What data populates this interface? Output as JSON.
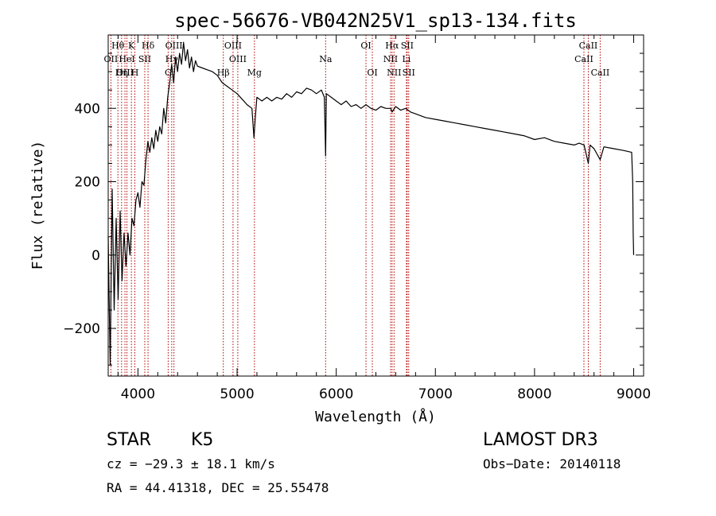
{
  "chart_data": {
    "type": "line",
    "title": "spec-56676-VB042N25V1_sp13-134.fits",
    "xlabel": "Wavelength (Å)",
    "ylabel": "Flux (relative)",
    "xlim": [
      3700,
      9100
    ],
    "ylim": [
      -330,
      600
    ],
    "x_ticks": [
      4000,
      5000,
      6000,
      7000,
      8000,
      9000
    ],
    "y_ticks": [
      -200,
      0,
      200,
      400
    ],
    "x_tick_labels": [
      "4000",
      "5000",
      "6000",
      "7000",
      "8000",
      "9000"
    ],
    "y_tick_labels": [
      "−200",
      "0",
      "200",
      "400"
    ],
    "grid": false,
    "series": [
      {
        "x": [
          3700,
          3720,
          3740,
          3760,
          3780,
          3800,
          3820,
          3840,
          3860,
          3880,
          3900,
          3920,
          3940,
          3960,
          3980,
          4000,
          4020,
          4040,
          4060,
          4080,
          4100,
          4120,
          4140,
          4160,
          4180,
          4200,
          4220,
          4240,
          4260,
          4280,
          4300,
          4320,
          4340,
          4360,
          4380,
          4400,
          4420,
          4440,
          4460,
          4480,
          4500,
          4520,
          4540,
          4560,
          4580,
          4600,
          4650,
          4700,
          4750,
          4800,
          4850,
          4900,
          4950,
          5000,
          5050,
          5100,
          5150,
          5170,
          5185,
          5200,
          5250,
          5300,
          5350,
          5400,
          5450,
          5500,
          5550,
          5600,
          5650,
          5700,
          5750,
          5800,
          5850,
          5880,
          5893,
          5900,
          5950,
          6000,
          6050,
          6100,
          6150,
          6200,
          6250,
          6300,
          6350,
          6400,
          6450,
          6500,
          6550,
          6563,
          6600,
          6650,
          6700,
          6750,
          6800,
          6900,
          7000,
          7100,
          7200,
          7300,
          7400,
          7500,
          7600,
          7700,
          7800,
          7900,
          8000,
          8100,
          8200,
          8300,
          8400,
          8450,
          8500,
          8542,
          8560,
          8600,
          8662,
          8700,
          8800,
          8900,
          8980,
          8990,
          8995,
          9000
        ],
        "y": [
          50,
          -300,
          180,
          -150,
          100,
          -120,
          120,
          -70,
          60,
          -30,
          60,
          0,
          100,
          80,
          150,
          170,
          130,
          200,
          190,
          260,
          310,
          280,
          320,
          290,
          340,
          310,
          350,
          330,
          400,
          360,
          430,
          470,
          520,
          470,
          540,
          500,
          550,
          520,
          580,
          530,
          560,
          510,
          540,
          500,
          530,
          515,
          510,
          505,
          500,
          490,
          470,
          460,
          450,
          440,
          425,
          410,
          400,
          320,
          380,
          430,
          420,
          430,
          420,
          430,
          425,
          440,
          430,
          445,
          440,
          455,
          450,
          440,
          450,
          430,
          270,
          440,
          430,
          420,
          410,
          420,
          405,
          410,
          400,
          410,
          400,
          395,
          405,
          400,
          400,
          390,
          405,
          395,
          400,
          390,
          385,
          375,
          370,
          365,
          360,
          355,
          350,
          345,
          340,
          335,
          330,
          325,
          315,
          320,
          310,
          305,
          300,
          305,
          300,
          250,
          300,
          290,
          260,
          295,
          290,
          285,
          280,
          200,
          60,
          0
        ]
      }
    ],
    "lines": [
      {
        "label": "Hθ",
        "x": 3798,
        "row": 0
      },
      {
        "label": "OII",
        "x": 3727,
        "row": 1
      },
      {
        "label": "OIII",
        "x": 3869,
        "row": 2
      },
      {
        "label": "Hη",
        "x": 3835,
        "row": 2
      },
      {
        "label": "HeI",
        "x": 3889,
        "row": 1
      },
      {
        "label": "K",
        "x": 3934,
        "row": 0
      },
      {
        "label": "H",
        "x": 3969,
        "row": 2
      },
      {
        "label": "SII",
        "x": 4069,
        "row": 1
      },
      {
        "label": "Hδ",
        "x": 4102,
        "row": 0
      },
      {
        "label": "G",
        "x": 4305,
        "row": 2
      },
      {
        "label": "OIII",
        "x": 4363,
        "row": 0
      },
      {
        "label": "Hγ",
        "x": 4341,
        "row": 1
      },
      {
        "label": "Hβ",
        "x": 4861,
        "row": 2
      },
      {
        "label": "OIII",
        "x": 4959,
        "row": 0
      },
      {
        "label": "OIII",
        "x": 5007,
        "row": 1
      },
      {
        "label": "Mg",
        "x": 5175,
        "row": 2
      },
      {
        "label": "Na",
        "x": 5893,
        "row": 1
      },
      {
        "label": "OI",
        "x": 6300,
        "row": 0
      },
      {
        "label": "OI",
        "x": 6364,
        "row": 2
      },
      {
        "label": "Hα",
        "x": 6563,
        "row": 0
      },
      {
        "label": "NII",
        "x": 6548,
        "row": 1
      },
      {
        "label": "NII",
        "x": 6583,
        "row": 2
      },
      {
        "label": "SII",
        "x": 6716,
        "row": 0
      },
      {
        "label": "Li",
        "x": 6708,
        "row": 1
      },
      {
        "label": "SII",
        "x": 6731,
        "row": 2
      },
      {
        "label": "CaII",
        "x": 8498,
        "row": 1
      },
      {
        "label": "CaII",
        "x": 8542,
        "row": 0
      },
      {
        "label": "CaII",
        "x": 8662,
        "row": 2
      }
    ]
  },
  "info": {
    "class": "STAR",
    "subclass": "K5",
    "survey": "LAMOST DR3",
    "cz": "cz = −29.3 ± 18.1 km/s",
    "obs_date": "Obs−Date: 20140118",
    "radec": "RA =  44.41318, DEC =  25.55478"
  }
}
